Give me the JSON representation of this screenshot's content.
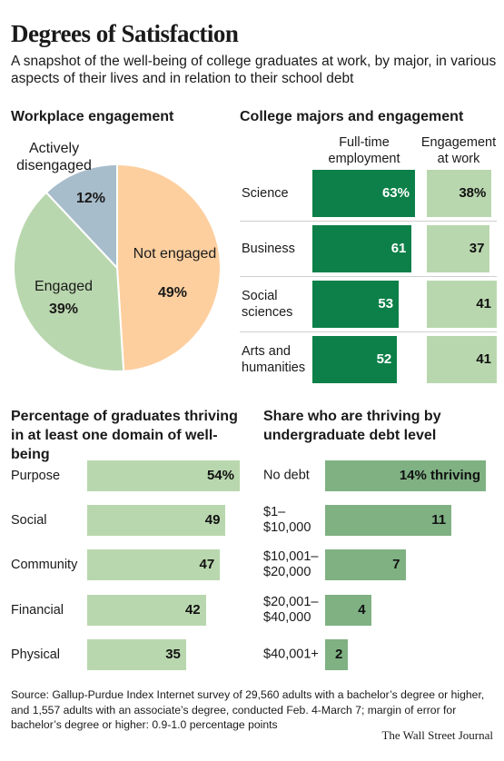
{
  "header": {
    "title": "Degrees of Satisfaction",
    "subtitle": "A snapshot of the well-being of college graduates at work, by major, in various aspects of their lives and in relation to their school debt"
  },
  "footer": {
    "source": "Source: Gallup-Purdue Index Internet survey of 29,560 adults with a bachelor’s degree or higher, and 1,557 adults with an associate’s degree, conducted Feb. 4-March 7; margin of error for bachelor’s degree or higher: 0.9-1.0 percentage points",
    "credit": "The Wall Street Journal"
  },
  "colors": {
    "dark_green": "#0c8048",
    "light_green": "#b9d7ae",
    "mid_green": "#7fb183",
    "peach": "#fdcf9f",
    "steel_blue": "#a8bdcb"
  },
  "chart_data": [
    {
      "type": "pie",
      "title": "Workplace engagement",
      "slices": [
        {
          "label": "Not engaged",
          "value": 49,
          "value_label": "49%",
          "color": "#fdcf9f"
        },
        {
          "label": "Engaged",
          "value": 39,
          "value_label": "39%",
          "color": "#b9d7ae"
        },
        {
          "label": "Actively disengaged",
          "value": 12,
          "value_label": "12%",
          "color": "#a8bdcb"
        }
      ]
    },
    {
      "type": "bar",
      "title": "College majors and engagement",
      "categories": [
        "Science",
        "Business",
        "Social sciences",
        "Arts and humanities"
      ],
      "series": [
        {
          "name": "Full-time employment",
          "values": [
            63,
            61,
            53,
            52
          ],
          "labels": [
            "63%",
            "61",
            "53",
            "52"
          ],
          "color": "#0c8048"
        },
        {
          "name": "Engagement at work",
          "values": [
            38,
            37,
            41,
            41
          ],
          "labels": [
            "38%",
            "37",
            "41",
            "41"
          ],
          "color": "#b9d7ae"
        }
      ]
    },
    {
      "type": "bar",
      "title": "Percentage of graduates thriving in at least one domain of well-being",
      "categories": [
        "Purpose",
        "Social",
        "Community",
        "Financial",
        "Physical"
      ],
      "values": [
        54,
        49,
        47,
        42,
        35
      ],
      "labels": [
        "54%",
        "49",
        "47",
        "42",
        "35"
      ],
      "color": "#b9d7ae"
    },
    {
      "type": "bar",
      "title": "Share who are thriving by undergraduate debt level",
      "categories": [
        "No debt",
        "$1– $10,000",
        "$10,001– $20,000",
        "$20,001– $40,000",
        "$40,001+"
      ],
      "values": [
        14,
        11,
        7,
        4,
        2
      ],
      "labels": [
        "14% thriving",
        "11",
        "7",
        "4",
        "2"
      ],
      "color": "#7fb183"
    }
  ]
}
